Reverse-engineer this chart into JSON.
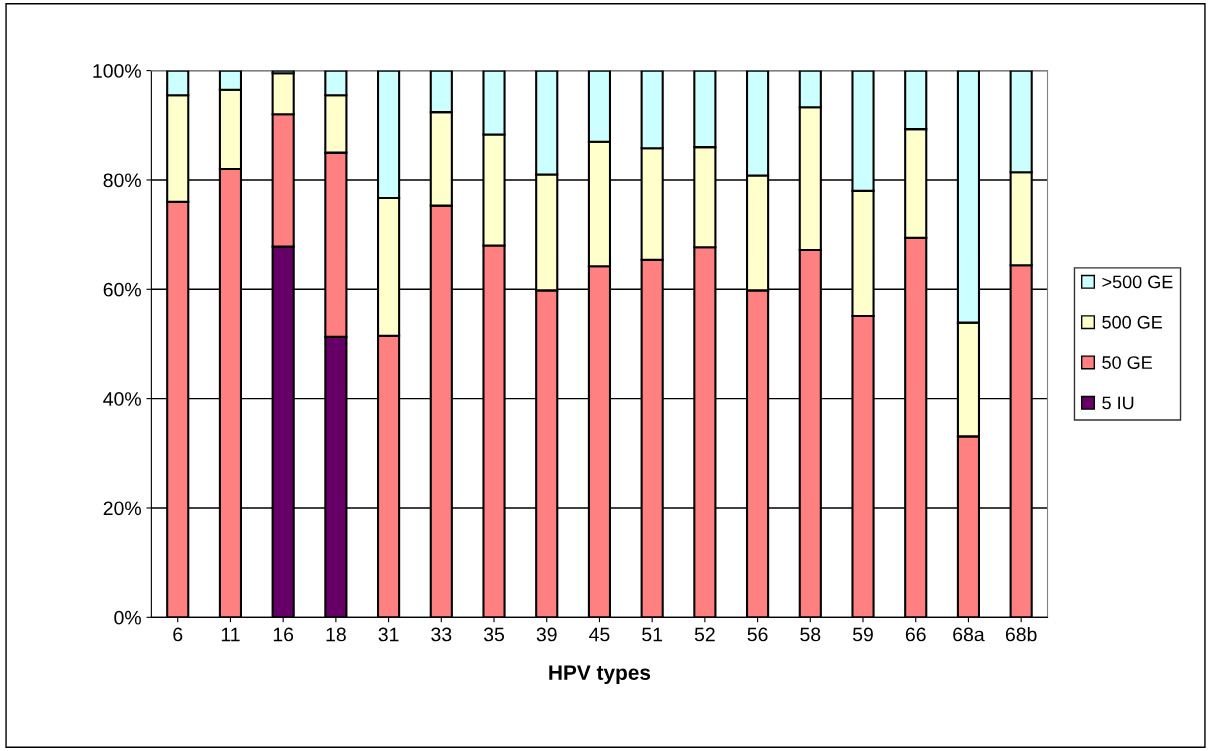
{
  "chart_data": {
    "type": "bar",
    "stacked": true,
    "xlabel": "HPV types",
    "categories": [
      "6",
      "11",
      "16",
      "18",
      "31",
      "33",
      "35",
      "39",
      "45",
      "51",
      "52",
      "56",
      "58",
      "59",
      "66",
      "68a",
      "68b"
    ],
    "series": [
      {
        "name": "5 IU",
        "color": "#660066",
        "values": [
          0,
          0,
          67.8,
          51.3,
          0,
          0,
          0,
          0,
          0,
          0,
          0,
          0,
          0,
          0,
          0,
          0,
          0
        ]
      },
      {
        "name": "50 GE",
        "color": "#ff8080",
        "values": [
          76,
          82,
          24.2,
          33.7,
          51.5,
          75.3,
          68,
          59.8,
          64.2,
          65.4,
          67.7,
          59.8,
          67.2,
          55.1,
          69.4,
          33.1,
          64.4
        ]
      },
      {
        "name": "500 GE",
        "color": "#ffffcc",
        "values": [
          19.5,
          14.5,
          7.5,
          10.5,
          25.2,
          17.1,
          20.3,
          21.2,
          22.8,
          20.4,
          18.3,
          21,
          26.1,
          22.9,
          19.9,
          20.8,
          17
        ]
      },
      {
        "name": ">500 GE",
        "color": "#ccffff",
        "values": [
          4.5,
          3.5,
          0.5,
          4.5,
          23.3,
          7.6,
          11.7,
          19,
          13,
          14.2,
          14,
          19.2,
          6.7,
          22,
          10.7,
          46.1,
          18.6
        ]
      }
    ],
    "ylim": [
      0,
      100
    ],
    "yticks": [
      {
        "value": 0,
        "label": "0%"
      },
      {
        "value": 20,
        "label": "20%"
      },
      {
        "value": 40,
        "label": "40%"
      },
      {
        "value": 60,
        "label": "60%"
      },
      {
        "value": 80,
        "label": "80%"
      },
      {
        "value": 100,
        "label": "100%"
      }
    ],
    "grid": "y",
    "legend": "right"
  }
}
